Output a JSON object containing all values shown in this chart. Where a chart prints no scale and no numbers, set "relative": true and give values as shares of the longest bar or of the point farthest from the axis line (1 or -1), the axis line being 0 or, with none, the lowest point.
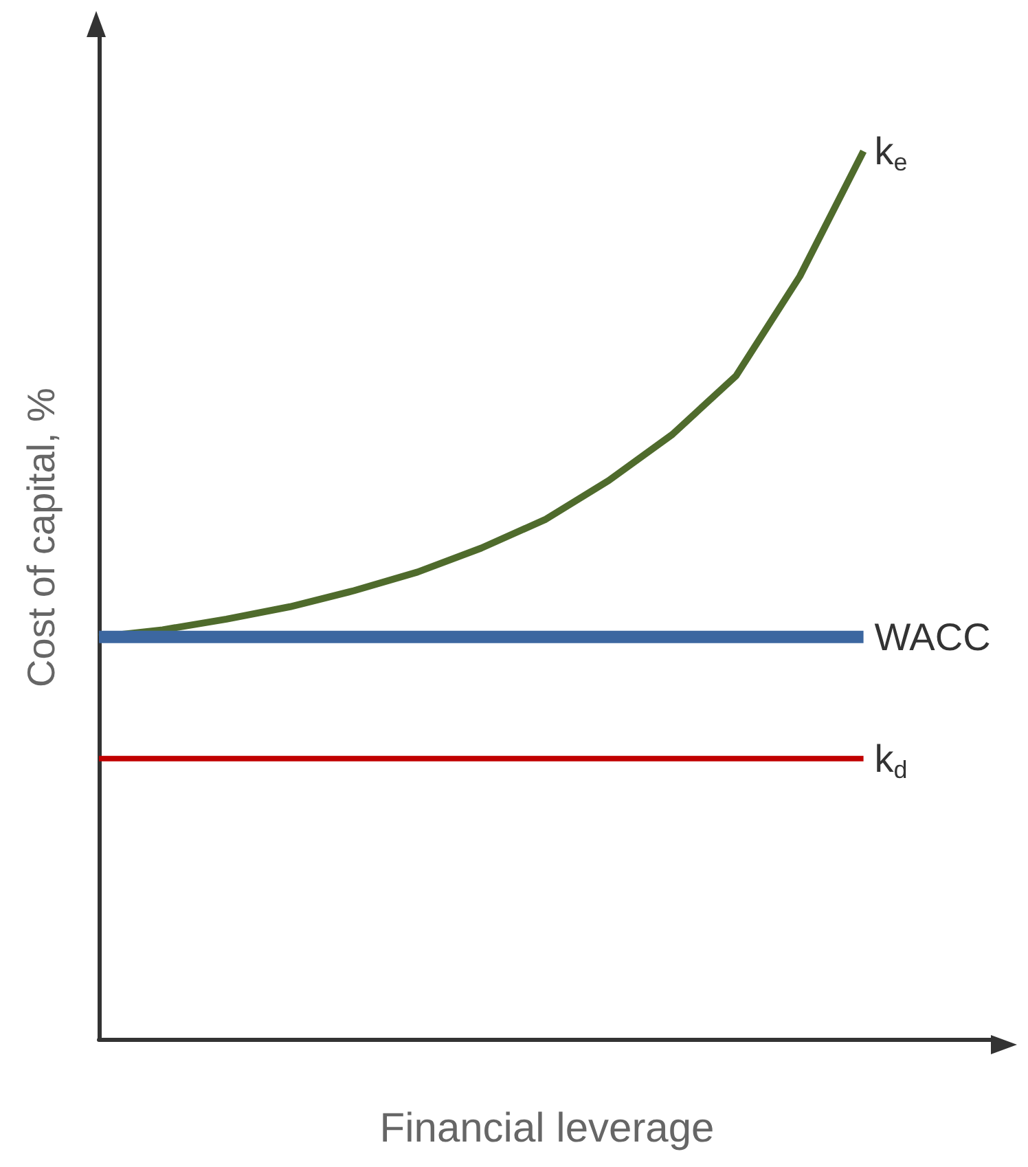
{
  "chart_data": {
    "type": "line",
    "relative": true,
    "xlabel": "Financial leverage",
    "ylabel": "Cost of capital, %",
    "categories": [
      null,
      null,
      null,
      null,
      null,
      null,
      null,
      null,
      null,
      null,
      null,
      null,
      null
    ],
    "series": [
      {
        "name": "k$_{e}$",
        "color": "#4f6b2c",
        "values": [
          0.453,
          0.461,
          0.473,
          0.487,
          0.505,
          0.526,
          0.553,
          0.585,
          0.629,
          0.681,
          0.747,
          0.859,
          1.0
        ]
      },
      {
        "name": "WACC",
        "color": "#3c67a0",
        "values": [
          0.453,
          0.453,
          0.453,
          0.453,
          0.453,
          0.453,
          0.453,
          0.453,
          0.453,
          0.453,
          0.453,
          0.453,
          0.453
        ]
      },
      {
        "name": "k$_{d}$",
        "color": "#c00000",
        "values": [
          0.316,
          0.316,
          0.316,
          0.316,
          0.316,
          0.316,
          0.316,
          0.316,
          0.316,
          0.316,
          0.316,
          0.316,
          0.316
        ]
      }
    ],
    "legend": false,
    "grid": false,
    "marker": "none",
    "line_style": "solid"
  }
}
